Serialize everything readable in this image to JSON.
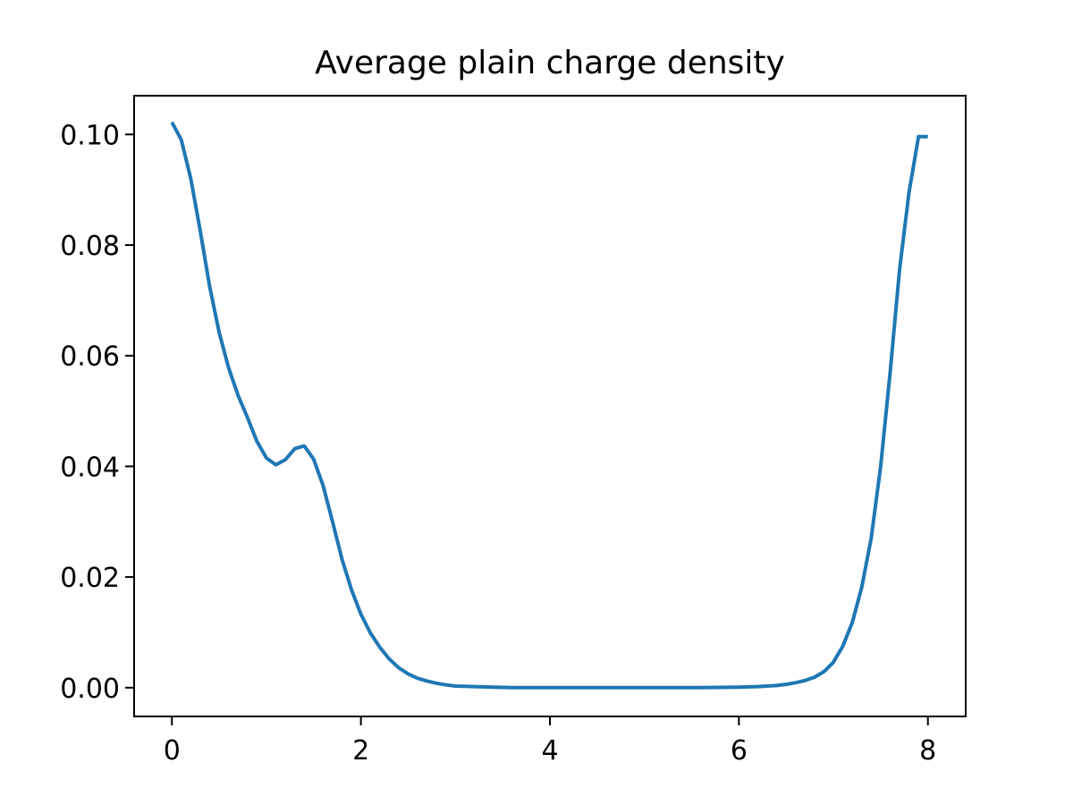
{
  "chart_data": {
    "type": "line",
    "title": "Average plain charge density",
    "xlabel": "",
    "ylabel": "",
    "xlim": [
      -0.4,
      8.4
    ],
    "ylim": [
      -0.0052,
      0.107
    ],
    "xticks": [
      0,
      2,
      4,
      6,
      8
    ],
    "xtick_labels": [
      "0",
      "2",
      "4",
      "6",
      "8"
    ],
    "yticks": [
      0.0,
      0.02,
      0.04,
      0.06,
      0.08,
      0.1
    ],
    "ytick_labels": [
      "0.00",
      "0.02",
      "0.04",
      "0.06",
      "0.08",
      "0.10"
    ],
    "grid": false,
    "legend": "none",
    "series": [
      {
        "color": "#1f77b4",
        "x": [
          0.0,
          0.1,
          0.2,
          0.3,
          0.4,
          0.5,
          0.6,
          0.7,
          0.8,
          0.9,
          1.0,
          1.1,
          1.2,
          1.3,
          1.4,
          1.5,
          1.6,
          1.7,
          1.8,
          1.9,
          2.0,
          2.1,
          2.2,
          2.3,
          2.4,
          2.5,
          2.6,
          2.7,
          2.8,
          2.9,
          3.0,
          3.2,
          3.4,
          3.6,
          3.8,
          4.0,
          4.4,
          4.8,
          5.2,
          5.6,
          6.0,
          6.2,
          6.4,
          6.5,
          6.6,
          6.7,
          6.8,
          6.9,
          7.0,
          7.1,
          7.2,
          7.3,
          7.4,
          7.5,
          7.6,
          7.7,
          7.8,
          7.9,
          8.0
        ],
        "y": [
          0.1022,
          0.099,
          0.092,
          0.0825,
          0.0725,
          0.0642,
          0.0578,
          0.0528,
          0.0488,
          0.0445,
          0.0415,
          0.0403,
          0.0412,
          0.0432,
          0.0437,
          0.0413,
          0.0365,
          0.03,
          0.0232,
          0.0177,
          0.0133,
          0.0099,
          0.0073,
          0.0052,
          0.0036,
          0.0025,
          0.0017,
          0.0012,
          0.0008,
          0.0005,
          0.0003,
          0.0002,
          0.0001,
          0.0,
          0.0,
          0.0,
          0.0,
          0.0,
          0.0,
          0.0,
          0.0001,
          0.0002,
          0.0004,
          0.0006,
          0.0009,
          0.0013,
          0.0019,
          0.0029,
          0.0046,
          0.0075,
          0.0118,
          0.0182,
          0.027,
          0.04,
          0.057,
          0.0755,
          0.0895,
          0.0996,
          0.0996
        ]
      }
    ]
  }
}
